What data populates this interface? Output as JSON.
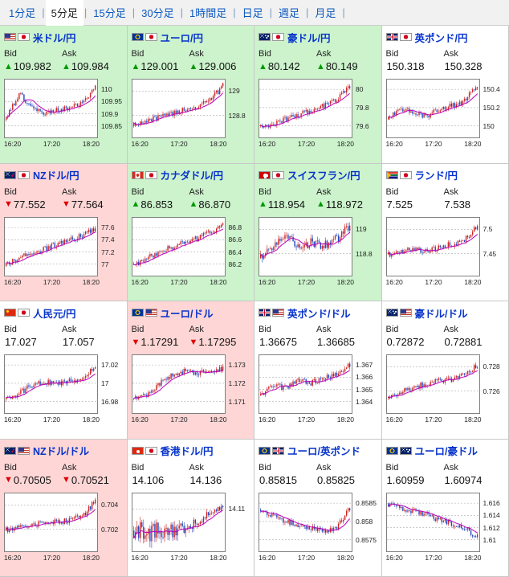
{
  "tab_bar": {
    "separator": "|",
    "tabs": [
      {
        "label": "1分足",
        "selected": false
      },
      {
        "label": "5分足",
        "selected": true
      },
      {
        "label": "15分足",
        "selected": false
      },
      {
        "label": "30分足",
        "selected": false
      },
      {
        "label": "1時間足",
        "selected": false
      },
      {
        "label": "日足",
        "selected": false
      },
      {
        "label": "週足",
        "selected": false
      },
      {
        "label": "月足",
        "selected": false
      }
    ]
  },
  "labels": {
    "bid": "Bid",
    "ask": "Ask"
  },
  "glyphs": {
    "arrow_up": "▲",
    "arrow_down": "▼"
  },
  "colors": {
    "pair_link": "#0633cc",
    "up_arrow": "#009900",
    "down_arrow": "#dd0000",
    "bg_up": "#ccf3cc",
    "bg_down": "#ffd6d6",
    "candle_up": "#cc2222",
    "candle_down": "#2244bb",
    "ma_line": "#bb00bb",
    "gridline": "#bbbbbb"
  },
  "x_ticks": [
    "16:20",
    "17:20",
    "18:20"
  ],
  "pairs": [
    {
      "name": "米ドル/円",
      "flags": [
        "us",
        "jp"
      ],
      "bid": "109.982",
      "ask": "109.984",
      "direction": "up",
      "tone": "up",
      "y_labels": [
        "110",
        "109.95",
        "109.9",
        "109.85"
      ],
      "spark": [
        0.3,
        0.78,
        0.55,
        0.42,
        0.48,
        0.52,
        0.6,
        0.92
      ],
      "seed": 101
    },
    {
      "name": "ユーロ/円",
      "flags": [
        "eu",
        "jp"
      ],
      "bid": "129.001",
      "ask": "129.006",
      "direction": "up",
      "tone": "up",
      "y_labels": [
        "129",
        "128.8"
      ],
      "spark": [
        0.18,
        0.28,
        0.33,
        0.4,
        0.48,
        0.55,
        0.65,
        0.93
      ],
      "seed": 202
    },
    {
      "name": "豪ドル/円",
      "flags": [
        "au",
        "jp"
      ],
      "bid": "80.142",
      "ask": "80.149",
      "direction": "up",
      "tone": "up",
      "y_labels": [
        "80",
        "79.8",
        "79.6"
      ],
      "spark": [
        0.15,
        0.22,
        0.3,
        0.38,
        0.47,
        0.55,
        0.68,
        0.9
      ],
      "seed": 303
    },
    {
      "name": "英ポンド/円",
      "flags": [
        "uk",
        "jp"
      ],
      "bid": "150.318",
      "ask": "150.328",
      "direction": "none",
      "tone": "flat",
      "y_labels": [
        "150.4",
        "150.2",
        "150"
      ],
      "spark": [
        0.3,
        0.5,
        0.4,
        0.35,
        0.5,
        0.55,
        0.65,
        0.92
      ],
      "seed": 404
    },
    {
      "name": "NZドル/円",
      "flags": [
        "nz",
        "jp"
      ],
      "bid": "77.552",
      "ask": "77.564",
      "direction": "down",
      "tone": "down",
      "y_labels": [
        "77.6",
        "77.4",
        "77.2",
        "77"
      ],
      "spark": [
        0.15,
        0.28,
        0.38,
        0.45,
        0.55,
        0.62,
        0.72,
        0.85
      ],
      "seed": 505
    },
    {
      "name": "カナダドル/円",
      "flags": [
        "ca",
        "jp"
      ],
      "bid": "86.853",
      "ask": "86.870",
      "direction": "up",
      "tone": "up",
      "y_labels": [
        "86.8",
        "86.6",
        "86.4",
        "86.2"
      ],
      "spark": [
        0.15,
        0.28,
        0.4,
        0.5,
        0.58,
        0.66,
        0.76,
        0.9
      ],
      "seed": 606
    },
    {
      "name": "スイスフラン/円",
      "flags": [
        "ch",
        "jp"
      ],
      "bid": "118.954",
      "ask": "118.972",
      "direction": "up",
      "tone": "up",
      "y_labels": [
        "119",
        "118.8"
      ],
      "spark": [
        0.3,
        0.48,
        0.75,
        0.5,
        0.58,
        0.52,
        0.65,
        0.9
      ],
      "noise": 0.085,
      "seed": 707
    },
    {
      "name": "ランド/円",
      "flags": [
        "za",
        "jp"
      ],
      "bid": "7.525",
      "ask": "7.538",
      "direction": "none",
      "tone": "flat",
      "y_labels": [
        "7.5",
        "7.45"
      ],
      "spark": [
        0.35,
        0.42,
        0.45,
        0.4,
        0.48,
        0.55,
        0.62,
        0.9
      ],
      "seed": 808
    },
    {
      "name": "人民元/円",
      "flags": [
        "cn",
        "jp"
      ],
      "bid": "17.027",
      "ask": "17.057",
      "direction": "none",
      "tone": "flat",
      "y_labels": [
        "17.02",
        "17",
        "16.98"
      ],
      "spark": [
        0.2,
        0.32,
        0.48,
        0.55,
        0.5,
        0.55,
        0.62,
        0.82
      ],
      "seed": 909
    },
    {
      "name": "ユーロ/ドル",
      "flags": [
        "eu",
        "us"
      ],
      "bid": "1.17291",
      "ask": "1.17295",
      "direction": "down",
      "tone": "down",
      "y_labels": [
        "1.173",
        "1.172",
        "1.171"
      ],
      "spark": [
        0.2,
        0.3,
        0.5,
        0.68,
        0.75,
        0.7,
        0.74,
        0.8
      ],
      "seed": 111
    },
    {
      "name": "英ポンド/ドル",
      "flags": [
        "uk",
        "us"
      ],
      "bid": "1.36675",
      "ask": "1.36685",
      "direction": "none",
      "tone": "flat",
      "y_labels": [
        "1.367",
        "1.366",
        "1.365",
        "1.364"
      ],
      "spark": [
        0.3,
        0.5,
        0.42,
        0.58,
        0.52,
        0.62,
        0.7,
        0.86
      ],
      "seed": 222
    },
    {
      "name": "豪ドル/ドル",
      "flags": [
        "au",
        "us"
      ],
      "bid": "0.72872",
      "ask": "0.72881",
      "direction": "none",
      "tone": "flat",
      "y_labels": [
        "0.728",
        "0.726"
      ],
      "spark": [
        0.25,
        0.35,
        0.45,
        0.5,
        0.56,
        0.6,
        0.68,
        0.85
      ],
      "seed": 333
    },
    {
      "name": "NZドル/ドル",
      "flags": [
        "nz",
        "us"
      ],
      "bid": "0.70505",
      "ask": "0.70521",
      "direction": "down",
      "tone": "down",
      "y_labels": [
        "0.704",
        "0.702"
      ],
      "spark": [
        0.35,
        0.4,
        0.45,
        0.5,
        0.5,
        0.55,
        0.62,
        0.9
      ],
      "seed": 444
    },
    {
      "name": "香港ドル/円",
      "flags": [
        "hk",
        "jp"
      ],
      "bid": "14.106",
      "ask": "14.136",
      "direction": "none",
      "tone": "flat",
      "y_labels": [
        "14.11"
      ],
      "spark": [
        0.35,
        0.3,
        0.35,
        0.32,
        0.42,
        0.52,
        0.66,
        0.82
      ],
      "noise": [
        0.2,
        0.05
      ],
      "seed": 555
    },
    {
      "name": "ユーロ/英ポンド",
      "flags": [
        "eu",
        "uk"
      ],
      "bid": "0.85815",
      "ask": "0.85825",
      "direction": "none",
      "tone": "flat",
      "y_labels": [
        "0.8585",
        "0.858",
        "0.8575"
      ],
      "spark": [
        0.72,
        0.6,
        0.52,
        0.45,
        0.38,
        0.32,
        0.42,
        0.78
      ],
      "seed": 666
    },
    {
      "name": "ユーロ/豪ドル",
      "flags": [
        "eu",
        "au"
      ],
      "bid": "1.60959",
      "ask": "1.60974",
      "direction": "none",
      "tone": "flat",
      "y_labels": [
        "1.616",
        "1.614",
        "1.612",
        "1.61"
      ],
      "spark": [
        0.85,
        0.78,
        0.7,
        0.64,
        0.55,
        0.48,
        0.4,
        0.22
      ],
      "seed": 777
    }
  ]
}
